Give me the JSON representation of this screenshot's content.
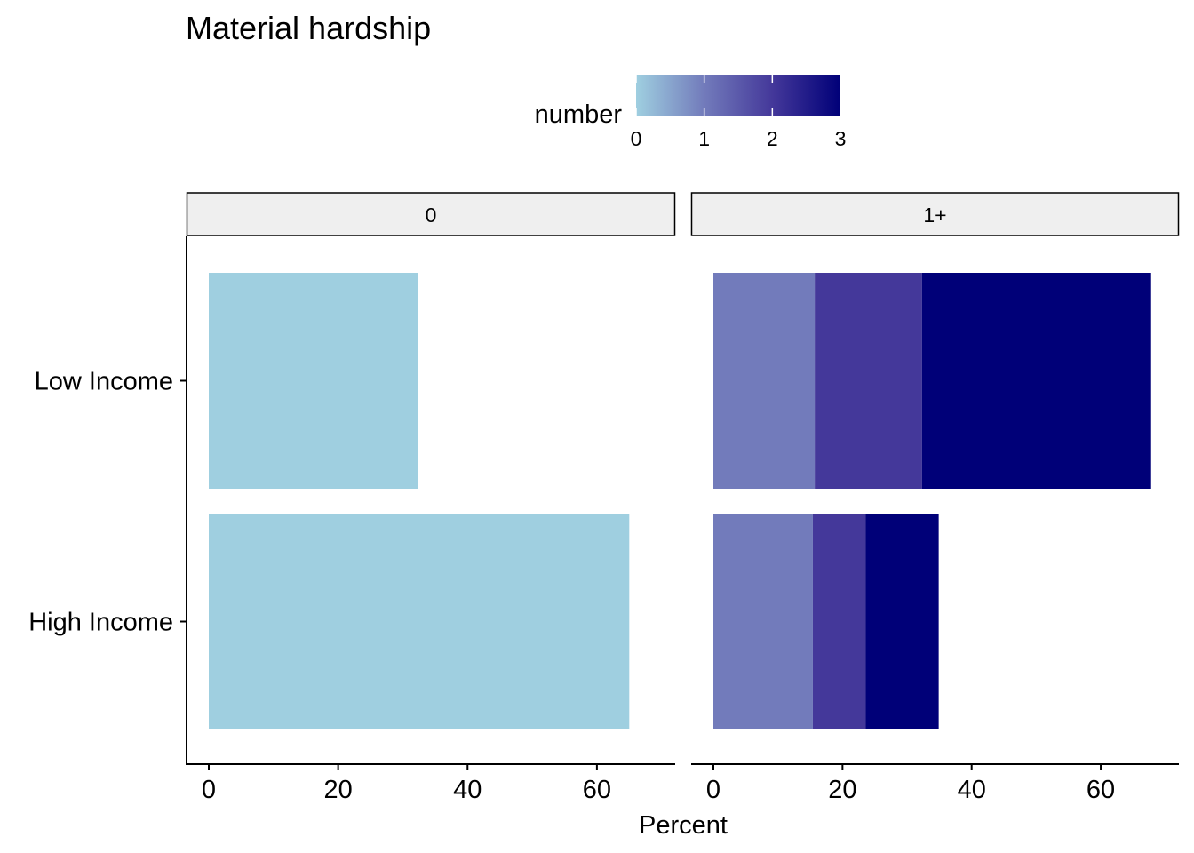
{
  "chart_data": {
    "type": "bar",
    "orientation": "horizontal",
    "stacked": true,
    "title": "Material hardship",
    "xlabel": "Percent",
    "ylabel": "",
    "xlim": [
      0,
      71
    ],
    "x_ticks": [
      0,
      20,
      40,
      60
    ],
    "categories": [
      "Low Income",
      "High Income"
    ],
    "legend": {
      "title": "number",
      "position": "top",
      "type": "colorbar",
      "range": [
        0,
        3
      ],
      "ticks": [
        0,
        1,
        2,
        3
      ],
      "colors": [
        "#9fcfe0",
        "#727bbb",
        "#44389a",
        "#000078"
      ]
    },
    "facets": [
      {
        "label": "0",
        "segments": [
          {
            "number": 0,
            "color": "#9fcfe0",
            "values": [
              32.4,
              65.0
            ]
          }
        ]
      },
      {
        "label": "1+",
        "segments": [
          {
            "number": 1,
            "color": "#727bbb",
            "values": [
              15.7,
              15.4
            ]
          },
          {
            "number": 2,
            "color": "#44389a",
            "values": [
              16.6,
              8.2
            ]
          },
          {
            "number": 3,
            "color": "#000078",
            "values": [
              35.5,
              11.3
            ]
          }
        ]
      }
    ],
    "grid": false
  }
}
